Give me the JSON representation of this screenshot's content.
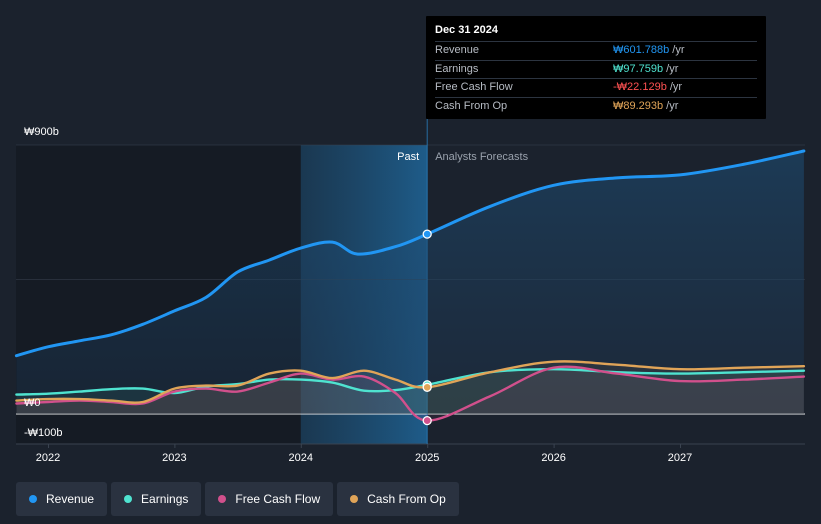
{
  "chart_data": {
    "type": "line",
    "currency": "₩",
    "x_ticks": [
      "2022",
      "2023",
      "2024",
      "2025",
      "2026",
      "2027"
    ],
    "y_axis_labels": [
      {
        "value": 900,
        "label": "₩900b"
      },
      {
        "value": 0,
        "label": "₩0"
      },
      {
        "value": -100,
        "label": "-₩100b"
      }
    ],
    "ylim": [
      -100,
      900
    ],
    "xlim": [
      2021.75,
      2027.98
    ],
    "past_label": "Past",
    "forecast_label": "Analysts Forecasts",
    "divider_x": 2025.0,
    "highlight_start": 2024.0,
    "series": [
      {
        "name": "Revenue",
        "color": "#2196f3",
        "points": [
          [
            2021.75,
            195
          ],
          [
            2022.0,
            225
          ],
          [
            2022.25,
            245
          ],
          [
            2022.5,
            265
          ],
          [
            2022.75,
            300
          ],
          [
            2023.0,
            345
          ],
          [
            2023.25,
            390
          ],
          [
            2023.5,
            475
          ],
          [
            2023.75,
            515
          ],
          [
            2024.0,
            555
          ],
          [
            2024.25,
            575
          ],
          [
            2024.45,
            535
          ],
          [
            2024.75,
            560
          ],
          [
            2025.0,
            601.788
          ],
          [
            2025.5,
            695
          ],
          [
            2026.0,
            765
          ],
          [
            2026.5,
            790
          ],
          [
            2027.0,
            800
          ],
          [
            2027.5,
            835
          ],
          [
            2027.98,
            880
          ]
        ]
      },
      {
        "name": "Earnings",
        "color": "#4fe3d0",
        "points": [
          [
            2021.75,
            65
          ],
          [
            2022.0,
            68
          ],
          [
            2022.25,
            75
          ],
          [
            2022.5,
            83
          ],
          [
            2022.75,
            85
          ],
          [
            2023.0,
            70
          ],
          [
            2023.25,
            92
          ],
          [
            2023.5,
            100
          ],
          [
            2023.75,
            115
          ],
          [
            2024.0,
            115
          ],
          [
            2024.25,
            105
          ],
          [
            2024.5,
            78
          ],
          [
            2024.75,
            80
          ],
          [
            2025.0,
            97.759
          ],
          [
            2025.5,
            140
          ],
          [
            2026.0,
            150
          ],
          [
            2026.5,
            140
          ],
          [
            2027.0,
            135
          ],
          [
            2027.5,
            140
          ],
          [
            2027.98,
            145
          ]
        ]
      },
      {
        "name": "Free Cash Flow",
        "color": "#d1508c",
        "points": [
          [
            2021.75,
            35
          ],
          [
            2022.0,
            40
          ],
          [
            2022.25,
            45
          ],
          [
            2022.5,
            40
          ],
          [
            2022.75,
            35
          ],
          [
            2023.0,
            75
          ],
          [
            2023.25,
            85
          ],
          [
            2023.5,
            75
          ],
          [
            2023.75,
            105
          ],
          [
            2024.0,
            135
          ],
          [
            2024.25,
            115
          ],
          [
            2024.5,
            125
          ],
          [
            2024.75,
            70
          ],
          [
            2025.0,
            -22.129
          ],
          [
            2025.5,
            60
          ],
          [
            2026.0,
            155
          ],
          [
            2026.5,
            135
          ],
          [
            2027.0,
            110
          ],
          [
            2027.5,
            115
          ],
          [
            2027.98,
            125
          ]
        ]
      },
      {
        "name": "Cash From Op",
        "color": "#e0a458",
        "points": [
          [
            2021.75,
            45
          ],
          [
            2022.0,
            50
          ],
          [
            2022.25,
            50
          ],
          [
            2022.5,
            45
          ],
          [
            2022.75,
            40
          ],
          [
            2023.0,
            85
          ],
          [
            2023.25,
            95
          ],
          [
            2023.5,
            95
          ],
          [
            2023.75,
            135
          ],
          [
            2024.0,
            145
          ],
          [
            2024.25,
            120
          ],
          [
            2024.5,
            145
          ],
          [
            2024.75,
            115
          ],
          [
            2025.0,
            89.293
          ],
          [
            2025.5,
            140
          ],
          [
            2026.0,
            175
          ],
          [
            2026.5,
            165
          ],
          [
            2027.0,
            150
          ],
          [
            2027.5,
            155
          ],
          [
            2027.98,
            160
          ]
        ]
      }
    ]
  },
  "tooltip": {
    "date": "Dec 31 2024",
    "rows": [
      {
        "label": "Revenue",
        "value": "₩601.788b",
        "unit": "/yr",
        "color": "#2196f3"
      },
      {
        "label": "Earnings",
        "value": "₩97.759b",
        "unit": "/yr",
        "color": "#4fe3d0"
      },
      {
        "label": "Free Cash Flow",
        "value": "-₩22.129b",
        "unit": "/yr",
        "color": "#ff5252"
      },
      {
        "label": "Cash From Op",
        "value": "₩89.293b",
        "unit": "/yr",
        "color": "#e0a458"
      }
    ]
  },
  "legend": [
    {
      "label": "Revenue",
      "color": "#2196f3"
    },
    {
      "label": "Earnings",
      "color": "#4fe3d0"
    },
    {
      "label": "Free Cash Flow",
      "color": "#d1508c"
    },
    {
      "label": "Cash From Op",
      "color": "#e0a458"
    }
  ]
}
